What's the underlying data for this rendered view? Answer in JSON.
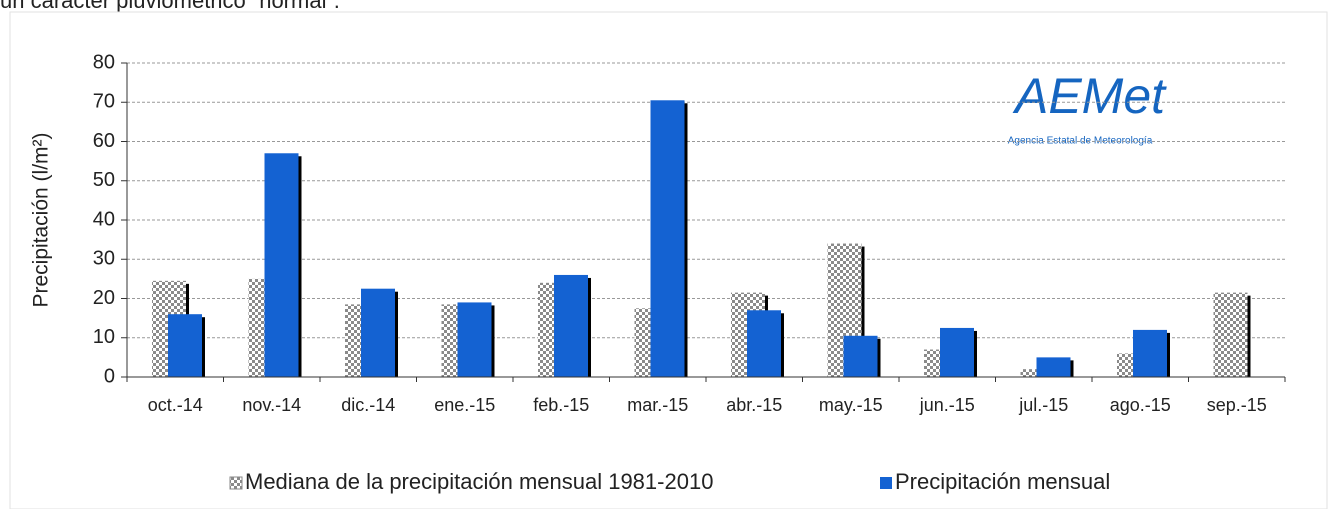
{
  "page_text": "un carácter pluviométrico “normal”.",
  "chart_data": {
    "type": "bar",
    "categories": [
      "oct.-14",
      "nov.-14",
      "dic.-14",
      "ene.-15",
      "feb.-15",
      "mar.-15",
      "abr.-15",
      "may.-15",
      "jun.-15",
      "jul.-15",
      "ago.-15",
      "sep.-15"
    ],
    "ylabel": "Precipitación (l/m²)",
    "series": [
      {
        "name": "Mediana de la precipitación mensual  1981-2010",
        "color": "#999999",
        "pattern": "checker",
        "values": [
          24.5,
          25,
          18.5,
          18.5,
          24,
          17.5,
          21.5,
          34,
          7,
          2,
          6,
          21.5
        ]
      },
      {
        "name": "Precipitación mensual",
        "color": "#1462d2",
        "values": [
          16,
          57,
          22.5,
          19,
          26,
          70.5,
          17,
          10.5,
          12.5,
          5,
          12,
          null
        ]
      }
    ],
    "ylim": [
      0,
      80
    ],
    "yticks": [
      0,
      10,
      20,
      30,
      40,
      50,
      60,
      70,
      80
    ],
    "grid": true,
    "logo": {
      "name": "AEMet",
      "subtitle": "Agencia Estatal de Meteorología"
    }
  }
}
